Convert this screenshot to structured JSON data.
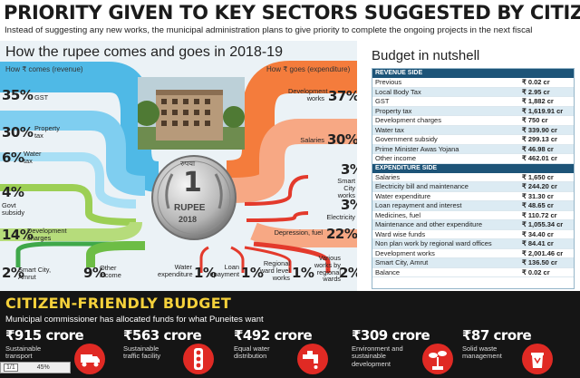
{
  "header": {
    "title": "PRIORITY GIVEN TO KEY SECTORS SUGGESTED BY CITIZENS",
    "subtitle": "Instead of suggesting any new works, the municipal administration plans to give priority to complete the ongoing projects in the next fiscal"
  },
  "flow": {
    "title": "How the rupee comes and goes in 2018-19",
    "comes_label": "How ₹ comes (revenue)",
    "goes_label": "How ₹ goes (expenditure)",
    "coin": {
      "top_text": "रुपया",
      "numeral": "1",
      "word": "RUPEE",
      "year": "2018"
    },
    "revenue": [
      {
        "pct": "35%",
        "label": "GST"
      },
      {
        "pct": "30%",
        "label": "Property tax"
      },
      {
        "pct": "6%",
        "label": "Water tax"
      },
      {
        "pct": "4%",
        "label": "Govt subsidy"
      },
      {
        "pct": "14%",
        "label": "Development charges"
      },
      {
        "pct": "2%",
        "label": "Smart City, Amrut"
      },
      {
        "pct": "9%",
        "label": "Other income"
      }
    ],
    "expenditure": [
      {
        "pct": "37%",
        "label": "Development works"
      },
      {
        "pct": "30%",
        "label": "Salaries"
      },
      {
        "pct": "3%",
        "label": "Smart City works"
      },
      {
        "pct": "3%",
        "label": "Electricity"
      },
      {
        "pct": "22%",
        "label": "Depression, fuel"
      },
      {
        "pct": "1%",
        "label": "Water expenditure"
      },
      {
        "pct": "1%",
        "label": "Loan repayment"
      },
      {
        "pct": "1%",
        "label": "Regional ward level works"
      },
      {
        "pct": "2%",
        "label": "Various works by regional wards"
      }
    ]
  },
  "budget": {
    "title": "Budget in nutshell",
    "revenue_header": "REVENUE SIDE",
    "revenue_rows": [
      {
        "label": "Previous",
        "value": "₹ 0.02 cr"
      },
      {
        "label": "Local Body Tax",
        "value": "₹ 2.95 cr"
      },
      {
        "label": "GST",
        "value": "₹ 1,882 cr"
      },
      {
        "label": "Property tax",
        "value": "₹ 1,619.91 cr"
      },
      {
        "label": "Development charges",
        "value": "₹ 750 cr"
      },
      {
        "label": "Water tax",
        "value": "₹ 339.90 cr"
      },
      {
        "label": "Government subsidy",
        "value": "₹ 299.13 cr"
      },
      {
        "label": "Prime Minister Awas Yojana",
        "value": "₹ 46.98 cr"
      },
      {
        "label": "Other income",
        "value": "₹ 462.01 cr"
      }
    ],
    "expenditure_header": "EXPENDITURE SIDE",
    "expenditure_rows": [
      {
        "label": "Salaries",
        "value": "₹ 1,650 cr"
      },
      {
        "label": "Electricity bill and maintenance",
        "value": "₹ 244.20 cr"
      },
      {
        "label": "Water expenditure",
        "value": "₹ 31.30 cr"
      },
      {
        "label": "Loan repayment and interest",
        "value": "₹ 48.65 cr"
      },
      {
        "label": "Medicines, fuel",
        "value": "₹ 110.72 cr"
      },
      {
        "label": "Maintenance and other expenditure",
        "value": "₹ 1,055.34 cr"
      },
      {
        "label": "Ward wise funds",
        "value": "₹ 34.40 cr"
      },
      {
        "label": "Non plan work by regional ward offices",
        "value": "₹ 84.41 cr"
      },
      {
        "label": "Development works",
        "value": "₹ 2,001.46 cr"
      },
      {
        "label": "Smart City, Amrut",
        "value": "₹ 136.50 cr"
      },
      {
        "label": "Balance",
        "value": "₹ 0.02 cr"
      }
    ]
  },
  "citizen": {
    "title": "CITIZEN-FRIENDLY BUDGET",
    "subtitle": "Municipal commissioner has allocated funds for what Puneites want",
    "items": [
      {
        "amount": "₹915 crore",
        "desc": "Sustainable transport",
        "icon": "truck-icon"
      },
      {
        "amount": "₹563 crore",
        "desc": "Sustainable traffic facility",
        "icon": "traffic-light-icon"
      },
      {
        "amount": "₹492 crore",
        "desc": "Equal water distribution",
        "icon": "water-tap-icon"
      },
      {
        "amount": "₹309 crore",
        "desc": "Environment and sustainable development",
        "icon": "plant-icon"
      },
      {
        "amount": "₹87 crore",
        "desc": "Solid waste management",
        "icon": "recycle-bin-icon"
      }
    ]
  },
  "viewer": {
    "page": "1/1",
    "zoom": "45%"
  },
  "colors": {
    "blue": "#3fb2e3",
    "orange": "#f47c3c",
    "green": "#8cc63f",
    "red": "#e02a24",
    "dark": "#151515",
    "yellow": "#f5d13b"
  }
}
